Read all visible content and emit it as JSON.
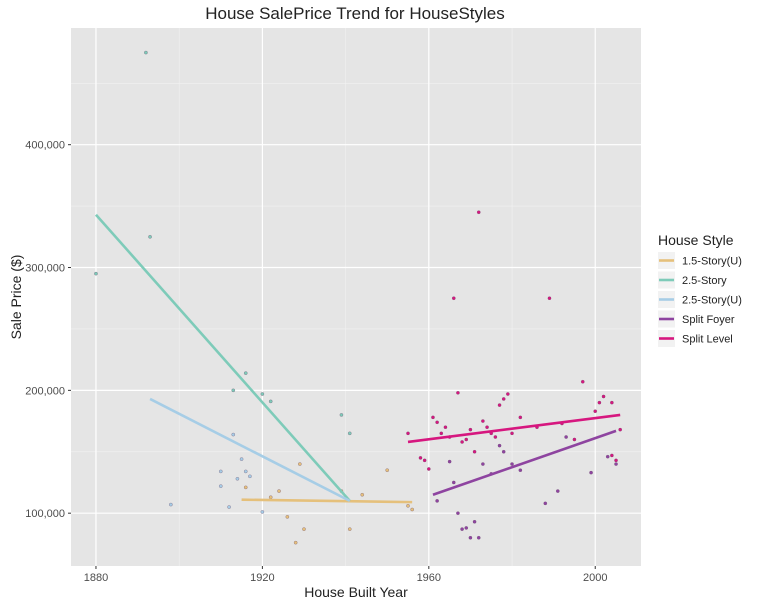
{
  "chart_data": {
    "type": "scatter",
    "title": "House SalePrice Trend for HouseStyles",
    "xlabel": "House Built Year",
    "ylabel": "Sale Price ($)",
    "xlim": [
      1874,
      2011
    ],
    "ylim": [
      57000,
      495000
    ],
    "x_ticks": [
      1880,
      1920,
      1960,
      2000
    ],
    "y_ticks": [
      100000,
      200000,
      300000,
      400000
    ],
    "y_tick_labels": [
      "100,000",
      "200,000",
      "300,000",
      "400,000"
    ],
    "grid": true,
    "legend": {
      "title": "House Style",
      "position": "right"
    },
    "series": [
      {
        "name": "1.5-Story(U)",
        "color": "#e5c07b",
        "trend": {
          "x": [
            1915,
            1956
          ],
          "y": [
            111000,
            109000
          ]
        },
        "points": [
          [
            1916,
            121000
          ],
          [
            1922,
            113000
          ],
          [
            1924,
            118000
          ],
          [
            1926,
            97000
          ],
          [
            1928,
            76000
          ],
          [
            1929,
            140000
          ],
          [
            1930,
            87000
          ],
          [
            1939,
            118000
          ],
          [
            1941,
            87000
          ],
          [
            1944,
            115000
          ],
          [
            1950,
            135000
          ],
          [
            1955,
            106000
          ],
          [
            1956,
            103000
          ]
        ]
      },
      {
        "name": "2.5-Story",
        "color": "#7ecbb9",
        "trend": {
          "x": [
            1880,
            1941
          ],
          "y": [
            343000,
            110000
          ]
        },
        "points": [
          [
            1880,
            295000
          ],
          [
            1892,
            475000
          ],
          [
            1893,
            325000
          ],
          [
            1913,
            200000
          ],
          [
            1916,
            214000
          ],
          [
            1920,
            197000
          ],
          [
            1922,
            191000
          ],
          [
            1939,
            180000
          ],
          [
            1941,
            165000
          ]
        ]
      },
      {
        "name": "2.5-Story(U)",
        "color": "#a6cde6",
        "trend": {
          "x": [
            1893,
            1941
          ],
          "y": [
            193000,
            110000
          ]
        },
        "points": [
          [
            1898,
            107000
          ],
          [
            1910,
            134000
          ],
          [
            1910,
            122000
          ],
          [
            1912,
            105000
          ],
          [
            1913,
            164000
          ],
          [
            1914,
            128000
          ],
          [
            1915,
            144000
          ],
          [
            1916,
            134000
          ],
          [
            1917,
            130000
          ],
          [
            1920,
            101000
          ]
        ]
      },
      {
        "name": "Split Foyer",
        "color": "#8e44a0",
        "trend": {
          "x": [
            1961,
            2005
          ],
          "y": [
            115000,
            167000
          ]
        },
        "points": [
          [
            1962,
            110000
          ],
          [
            1965,
            142000
          ],
          [
            1966,
            125000
          ],
          [
            1967,
            100000
          ],
          [
            1968,
            87000
          ],
          [
            1969,
            88000
          ],
          [
            1970,
            80000
          ],
          [
            1971,
            93000
          ],
          [
            1972,
            80000
          ],
          [
            1973,
            140000
          ],
          [
            1975,
            132000
          ],
          [
            1977,
            155000
          ],
          [
            1978,
            150000
          ],
          [
            1980,
            140000
          ],
          [
            1982,
            135000
          ],
          [
            1988,
            108000
          ],
          [
            1991,
            118000
          ],
          [
            1993,
            162000
          ],
          [
            1999,
            133000
          ],
          [
            2003,
            146000
          ],
          [
            2005,
            140000
          ]
        ]
      },
      {
        "name": "Split Level",
        "color": "#d6177f",
        "trend": {
          "x": [
            1955,
            2006
          ],
          "y": [
            158000,
            180000
          ]
        },
        "points": [
          [
            1955,
            165000
          ],
          [
            1958,
            145000
          ],
          [
            1959,
            143000
          ],
          [
            1960,
            136000
          ],
          [
            1961,
            178000
          ],
          [
            1962,
            174000
          ],
          [
            1963,
            165000
          ],
          [
            1964,
            170000
          ],
          [
            1965,
            162000
          ],
          [
            1966,
            275000
          ],
          [
            1967,
            198000
          ],
          [
            1968,
            158000
          ],
          [
            1969,
            160000
          ],
          [
            1970,
            168000
          ],
          [
            1971,
            150000
          ],
          [
            1972,
            345000
          ],
          [
            1973,
            175000
          ],
          [
            1974,
            170000
          ],
          [
            1975,
            165000
          ],
          [
            1976,
            162000
          ],
          [
            1977,
            188000
          ],
          [
            1978,
            193000
          ],
          [
            1979,
            197000
          ],
          [
            1980,
            165000
          ],
          [
            1982,
            178000
          ],
          [
            1986,
            170000
          ],
          [
            1989,
            275000
          ],
          [
            1992,
            173000
          ],
          [
            1995,
            160000
          ],
          [
            1997,
            207000
          ],
          [
            2000,
            183000
          ],
          [
            2001,
            190000
          ],
          [
            2002,
            195000
          ],
          [
            2004,
            190000
          ],
          [
            2004,
            147000
          ],
          [
            2005,
            143000
          ],
          [
            2006,
            168000
          ]
        ]
      }
    ]
  }
}
